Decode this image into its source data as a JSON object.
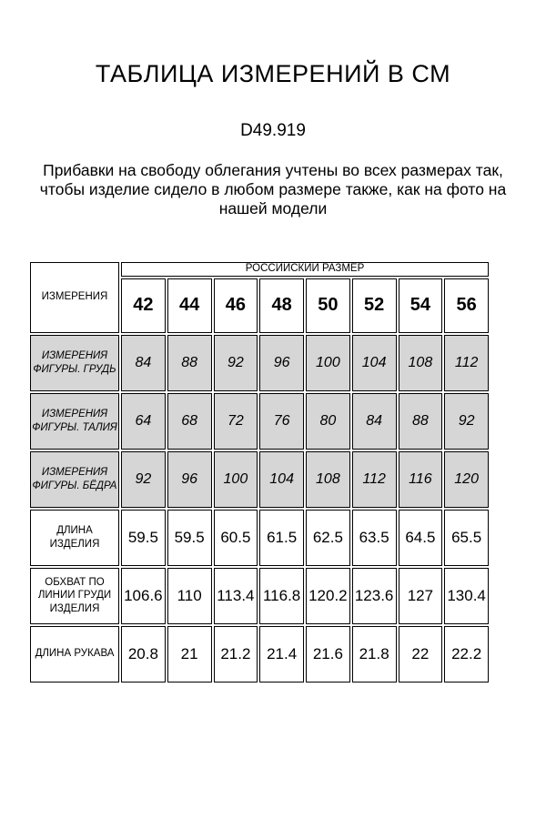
{
  "page": {
    "title": "ТАБЛИЦА ИЗМЕРЕНИЙ В СМ",
    "article_code": "D49.919",
    "note": "Прибавки на свободу облегания учтены во всех размерах так, чтобы изделие сидело в любом размере также, как на фото на нашей модели"
  },
  "table": {
    "corner_label": "ИЗМЕРЕНИЯ",
    "group_header": "РОССИЙСКИЙ РАЗМЕР",
    "sizes": [
      "42",
      "44",
      "46",
      "48",
      "50",
      "52",
      "54",
      "56"
    ],
    "rows": [
      {
        "label": "ИЗМЕРЕНИЯ ФИГУРЫ. ГРУДЬ",
        "style": "figure",
        "values": [
          "84",
          "88",
          "92",
          "96",
          "100",
          "104",
          "108",
          "112"
        ]
      },
      {
        "label": "ИЗМЕРЕНИЯ ФИГУРЫ. ТАЛИЯ",
        "style": "figure",
        "values": [
          "64",
          "68",
          "72",
          "76",
          "80",
          "84",
          "88",
          "92"
        ]
      },
      {
        "label": "ИЗМЕРЕНИЯ ФИГУРЫ. БЁДРА",
        "style": "figure",
        "values": [
          "92",
          "96",
          "100",
          "104",
          "108",
          "112",
          "116",
          "120"
        ]
      },
      {
        "label": "ДЛИНА ИЗДЕЛИЯ",
        "style": "product",
        "values": [
          "59.5",
          "59.5",
          "60.5",
          "61.5",
          "62.5",
          "63.5",
          "64.5",
          "65.5"
        ]
      },
      {
        "label": "ОБХВАТ ПО ЛИНИИ ГРУДИ ИЗДЕЛИЯ",
        "style": "product",
        "values": [
          "106.6",
          "110",
          "113.4",
          "116.8",
          "120.2",
          "123.6",
          "127",
          "130.4"
        ]
      },
      {
        "label": "ДЛИНА РУКАВА",
        "style": "product",
        "values": [
          "20.8",
          "21",
          "21.2",
          "21.4",
          "21.6",
          "21.8",
          "22",
          "22.2"
        ]
      }
    ],
    "colors": {
      "figure_row_bg": "#d6d6d6",
      "border": "#000000",
      "text": "#000000"
    }
  }
}
